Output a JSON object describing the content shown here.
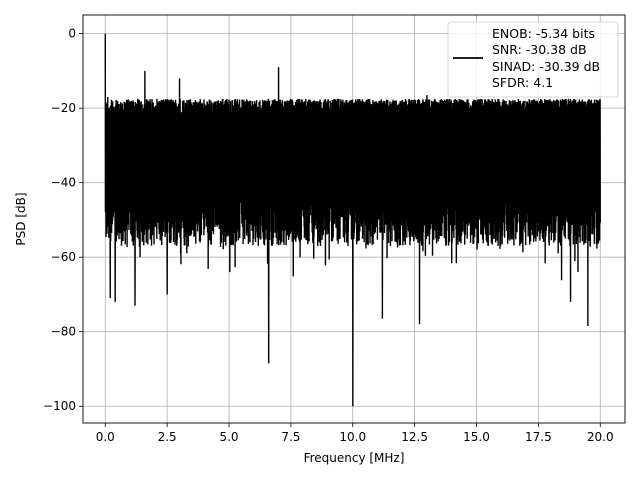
{
  "chart_data": {
    "type": "line",
    "title": "",
    "xlabel": "Frequency [MHz]",
    "ylabel": "PSD [dB]",
    "xlim": [
      -0.9,
      21.0
    ],
    "ylim": [
      -104.5,
      5
    ],
    "x_ticks": [
      0.0,
      2.5,
      5.0,
      7.5,
      10.0,
      12.5,
      15.0,
      17.5,
      20.0
    ],
    "x_tick_labels": [
      "0.0",
      "2.5",
      "5.0",
      "7.5",
      "10.0",
      "12.5",
      "15.0",
      "17.5",
      "20.0"
    ],
    "y_ticks": [
      0,
      -20,
      -40,
      -60,
      -80,
      -100
    ],
    "y_tick_labels": [
      "0",
      "−20",
      "−40",
      "−60",
      "−80",
      "−100"
    ],
    "grid": true,
    "legend_position": "top-right",
    "series": [
      {
        "color": "#000000",
        "legend_lines": [
          "ENOB: -5.34 bits",
          "SNR: -30.38 dB",
          "SINAD: -30.39 dB",
          "SFDR: 4.1"
        ],
        "x_range": [
          0.0,
          20.0
        ],
        "noise_floor_upper_db": -17.5,
        "noise_floor_band_db": [
          -57,
          -22
        ],
        "peaks": [
          {
            "x": 0.0,
            "y": 0.0
          },
          {
            "x": 1.6,
            "y": -10.0
          },
          {
            "x": 3.0,
            "y": -12.0
          },
          {
            "x": 7.0,
            "y": -9.0
          },
          {
            "x": 10.0,
            "y": -9.0
          },
          {
            "x": 0.1,
            "y": -17.0
          },
          {
            "x": 6.6,
            "y": -15.0
          },
          {
            "x": 13.0,
            "y": -16.5
          }
        ],
        "dips": [
          {
            "x": 0.2,
            "y": -71.0
          },
          {
            "x": 0.4,
            "y": -72.0
          },
          {
            "x": 1.2,
            "y": -73.0
          },
          {
            "x": 2.5,
            "y": -70.0
          },
          {
            "x": 6.6,
            "y": -88.5
          },
          {
            "x": 10.0,
            "y": -100.0
          },
          {
            "x": 11.2,
            "y": -76.5
          },
          {
            "x": 12.7,
            "y": -78.0
          },
          {
            "x": 19.5,
            "y": -78.5
          },
          {
            "x": 18.8,
            "y": -72.0
          }
        ]
      }
    ]
  }
}
